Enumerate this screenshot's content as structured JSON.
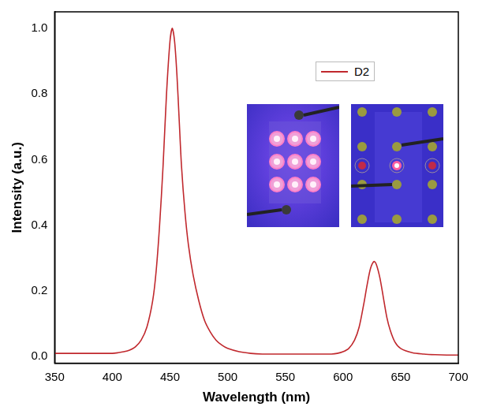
{
  "chart_data": {
    "type": "line",
    "x_label": "Wavelength (nm)",
    "y_label": "Intensity (a.u.)",
    "x": [
      350,
      360,
      370,
      380,
      390,
      400,
      405,
      410,
      415,
      420,
      425,
      430,
      435,
      438,
      441,
      444,
      447,
      450,
      452,
      454,
      456,
      458,
      460,
      463,
      466,
      470,
      475,
      480,
      485,
      490,
      495,
      500,
      510,
      520,
      530,
      540,
      550,
      560,
      570,
      580,
      590,
      595,
      600,
      605,
      610,
      614,
      618,
      621,
      624,
      627,
      629,
      632,
      635,
      638,
      641,
      645,
      650,
      660,
      670,
      680,
      690,
      700
    ],
    "series": [
      {
        "name": "D2",
        "color": "#c0282d",
        "values": [
          0.01,
          0.01,
          0.01,
          0.01,
          0.01,
          0.01,
          0.012,
          0.015,
          0.02,
          0.03,
          0.05,
          0.09,
          0.17,
          0.26,
          0.4,
          0.58,
          0.8,
          0.96,
          1.0,
          0.96,
          0.86,
          0.72,
          0.58,
          0.44,
          0.34,
          0.25,
          0.17,
          0.11,
          0.075,
          0.05,
          0.035,
          0.025,
          0.015,
          0.01,
          0.008,
          0.008,
          0.008,
          0.008,
          0.008,
          0.008,
          0.008,
          0.01,
          0.015,
          0.025,
          0.05,
          0.09,
          0.16,
          0.22,
          0.27,
          0.29,
          0.28,
          0.24,
          0.18,
          0.12,
          0.08,
          0.045,
          0.025,
          0.012,
          0.008,
          0.006,
          0.005,
          0.005
        ]
      }
    ],
    "xlim": [
      350,
      700
    ],
    "xticks": [
      350,
      400,
      450,
      500,
      550,
      600,
      650,
      700
    ],
    "ylim": [
      -0.02,
      1.05
    ],
    "yticks": [
      {
        "value": 0,
        "label": "0.0"
      },
      {
        "value": 0.2,
        "label": "0.2"
      },
      {
        "value": 0.4,
        "label": "0.4"
      },
      {
        "value": 0.6,
        "label": "0.6"
      },
      {
        "value": 0.8,
        "label": "0.8"
      },
      {
        "value": 1,
        "label": "1.0"
      }
    ],
    "grid": false,
    "legend": "upper right"
  }
}
